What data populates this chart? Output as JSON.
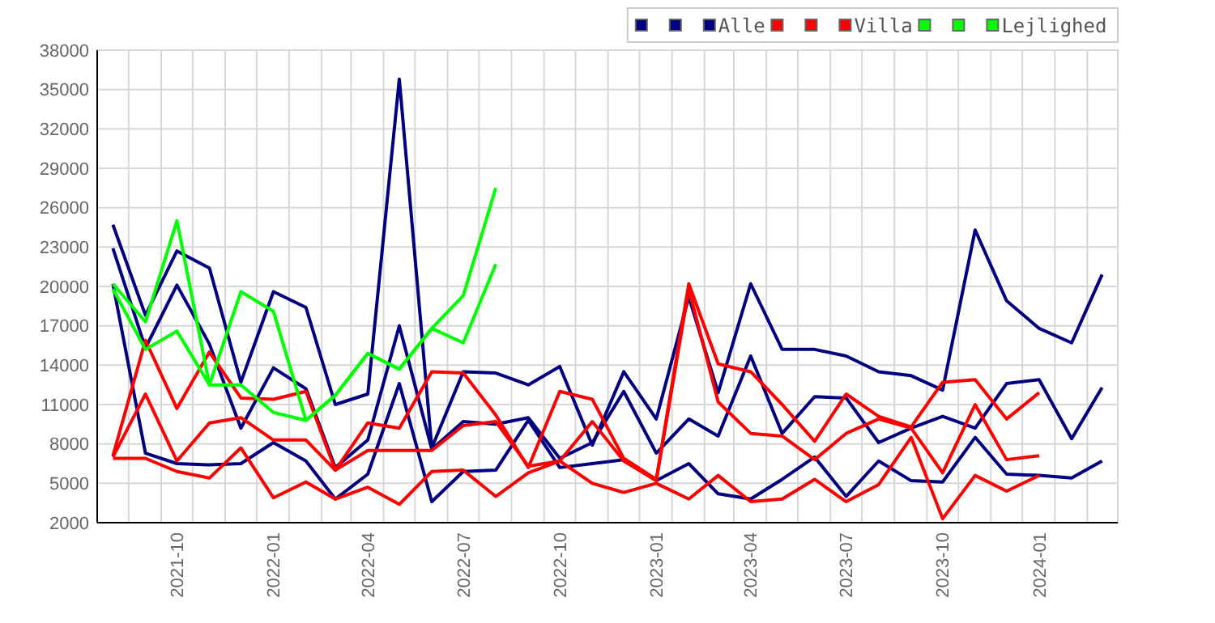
{
  "chart_data": {
    "type": "line",
    "x": [
      "2021-08",
      "2021-09",
      "2021-10",
      "2021-11",
      "2021-12",
      "2022-01",
      "2022-02",
      "2022-03",
      "2022-04",
      "2022-05",
      "2022-06",
      "2022-07",
      "2022-08",
      "2022-09",
      "2022-10",
      "2022-11",
      "2022-12",
      "2023-01",
      "2023-02",
      "2023-03",
      "2023-04",
      "2023-05",
      "2023-06",
      "2023-07",
      "2023-08",
      "2023-09",
      "2023-10",
      "2023-11",
      "2023-12",
      "2024-01",
      "2024-02",
      "2024-03"
    ],
    "xlim": [
      "2021-07-17",
      "2024-03-16"
    ],
    "xticks": [
      "2021-10",
      "2022-01",
      "2022-04",
      "2022-07",
      "2022-10",
      "2023-01",
      "2023-04",
      "2023-07",
      "2023-10",
      "2024-01"
    ],
    "ylim": [
      2000,
      38000
    ],
    "yticks": [
      2000,
      5000,
      8000,
      11000,
      14000,
      17000,
      20000,
      23000,
      26000,
      29000,
      32000,
      35000,
      38000
    ],
    "grid": true,
    "legend": "top right",
    "line_style": "solid",
    "marker": "none",
    "series": [
      {
        "color": "#000080",
        "values": [
          24700,
          17800,
          22700,
          21400,
          12700,
          19600,
          18400,
          11000,
          11800,
          35800,
          7700,
          13500,
          13400,
          12500,
          13900,
          7900,
          13500,
          9900,
          19200,
          11900,
          20200,
          15200,
          15200,
          14700,
          13500,
          13200,
          12100,
          24300,
          18900,
          16800,
          15700,
          20900
        ]
      },
      {
        "color": "#000080",
        "values": [
          22900,
          15300,
          20100,
          15600,
          9200,
          13800,
          12200,
          6200,
          8300,
          17000,
          7600,
          9700,
          9500,
          10000,
          6900,
          8100,
          12000,
          7300,
          9900,
          8600,
          14700,
          8800,
          11600,
          11500,
          8100,
          9200,
          10100,
          9200,
          12600,
          12900,
          8400,
          12300
        ]
      },
      {
        "name": "Alle",
        "color": "#000080",
        "values": [
          20200,
          7300,
          6500,
          6400,
          6500,
          8100,
          6700,
          3800,
          5700,
          12600,
          3600,
          5900,
          6000,
          9800,
          6200,
          6500,
          6800,
          5200,
          6500,
          4200,
          3800,
          5300,
          7000,
          4000,
          6700,
          5200,
          5100,
          8500,
          5700,
          5600,
          5400,
          6700
        ]
      },
      {
        "color": "#ff0000",
        "values": [
          7100,
          15900,
          10700,
          15000,
          11500,
          11400,
          12000,
          6000,
          9600,
          9200,
          13500,
          13400,
          10200,
          6200,
          12000,
          11400,
          6900,
          5300,
          20200,
          14100,
          13500,
          11000,
          8200,
          11800,
          10100,
          9300,
          12700,
          12900,
          9900,
          11900,
          null,
          null
        ]
      },
      {
        "color": "#ff0000",
        "values": [
          7000,
          11800,
          6700,
          9600,
          10000,
          8300,
          8300,
          6000,
          7500,
          7500,
          7500,
          9400,
          9700,
          6300,
          6700,
          9700,
          6700,
          5200,
          19800,
          11200,
          8800,
          8600,
          6800,
          8800,
          9900,
          9200,
          5800,
          11000,
          6800,
          7100,
          null,
          null
        ]
      },
      {
        "name": "Villa",
        "color": "#ff0000",
        "values": [
          6900,
          6900,
          5900,
          5400,
          7700,
          3900,
          5100,
          3800,
          4700,
          3400,
          5900,
          6000,
          4000,
          5800,
          6700,
          5000,
          4300,
          5000,
          3800,
          5600,
          3600,
          3800,
          5300,
          3600,
          4900,
          8500,
          2300,
          5600,
          4400,
          5600,
          null,
          null
        ]
      },
      {
        "color": "#00ff00",
        "values": [
          20200,
          17300,
          25000,
          12500,
          19600,
          18100,
          9800,
          11700,
          14900,
          13700,
          16800,
          19300,
          27500,
          null,
          null,
          null,
          null,
          null,
          null,
          null,
          null,
          null,
          null,
          null,
          null,
          null,
          null,
          null,
          null,
          null,
          null,
          null
        ]
      },
      {
        "color": "#00ff00",
        "values": [
          19800,
          15200,
          16600,
          12500,
          12500,
          10400,
          9800,
          11700,
          14900,
          13700,
          16800,
          15700,
          21700,
          null,
          null,
          null,
          null,
          null,
          null,
          null,
          null,
          null,
          null,
          null,
          null,
          null,
          null,
          null,
          null,
          null,
          null,
          null
        ]
      },
      {
        "name": "Lejlighed",
        "color": "#00ff00",
        "values": [
          null,
          null,
          null,
          null,
          null,
          null,
          null,
          null,
          null,
          null,
          null,
          null,
          null,
          null,
          null,
          null,
          null,
          null,
          null,
          null,
          null,
          null,
          null,
          null,
          null,
          null,
          null,
          null,
          null,
          null,
          null,
          null
        ]
      }
    ]
  }
}
